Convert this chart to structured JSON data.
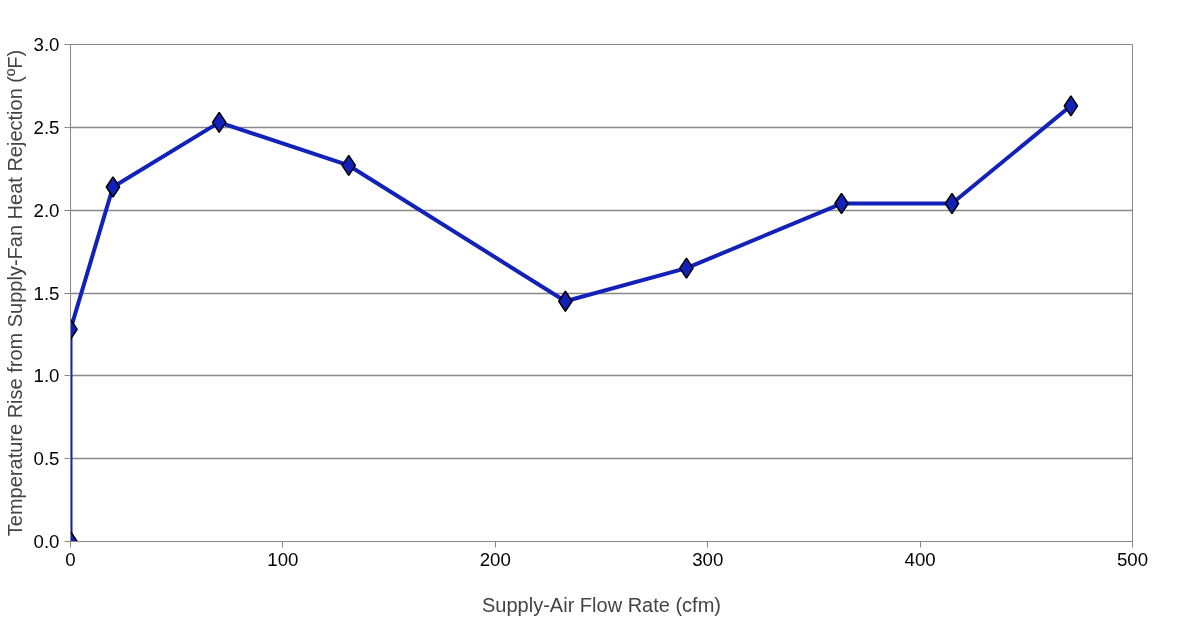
{
  "chart_data": {
    "type": "line",
    "xlabel": "Supply-Air Flow Rate (cfm)",
    "ylabel": "Temperature Rise from Supply-Fan Heat Rejection (ºF)",
    "series": [
      {
        "color": "#1222b8",
        "x": [
          0,
          0,
          20,
          70,
          131,
          233,
          290,
          363,
          415,
          471
        ],
        "values": [
          0.0,
          1.28,
          2.14,
          2.53,
          2.27,
          1.45,
          1.65,
          2.04,
          2.04,
          2.63
        ]
      }
    ],
    "xlim": [
      0,
      500
    ],
    "xticks": [
      0,
      100,
      200,
      300,
      400,
      500
    ],
    "ylim": [
      0,
      3.0
    ],
    "yticks": [
      {
        "value": 0,
        "label": "0.0"
      },
      {
        "value": 0.5,
        "label": "0.5"
      },
      {
        "value": 1.0,
        "label": "1.0"
      },
      {
        "value": 1.5,
        "label": "1.5"
      },
      {
        "value": 2.0,
        "label": "2.0"
      },
      {
        "value": 2.5,
        "label": "2.5"
      },
      {
        "value": 3.0,
        "label": "3.0"
      }
    ],
    "grid": "y",
    "marker": "diamond",
    "line_style": "solid"
  }
}
